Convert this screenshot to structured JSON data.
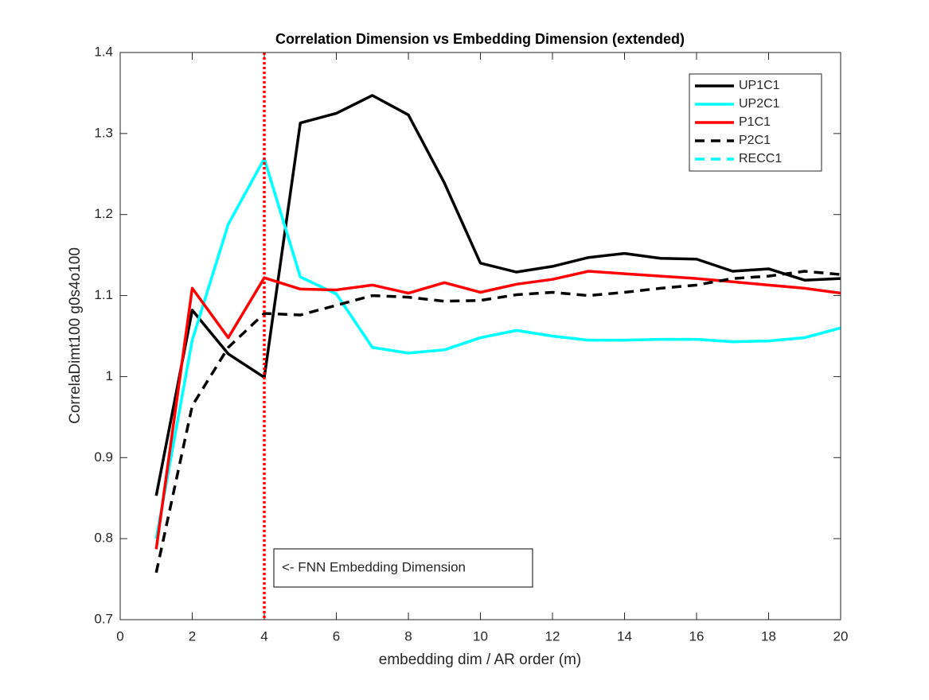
{
  "chart_data": {
    "type": "line",
    "title": "Correlation Dimension vs Embedding Dimension (extended)",
    "xlabel": "embedding dim / AR order (m)",
    "ylabel": "CorrelaDimt100 g0s4o100",
    "x": [
      1,
      2,
      3,
      4,
      5,
      6,
      7,
      8,
      9,
      10,
      11,
      12,
      13,
      14,
      15,
      16,
      17,
      18,
      19,
      20
    ],
    "series": [
      {
        "name": "RECC1",
        "color": "#00ffff",
        "dashed": true,
        "values": [
          0.8,
          1.045,
          1.188,
          1.269,
          1.123,
          1.102,
          1.036,
          1.029,
          1.033,
          1.048,
          1.057,
          1.05,
          1.045,
          1.045,
          1.046,
          1.046,
          1.043,
          1.044,
          1.048,
          1.06
        ]
      },
      {
        "name": "UP1C1",
        "color": "#000000",
        "dashed": false,
        "values": [
          0.853,
          1.082,
          1.028,
          0.999,
          1.313,
          1.325,
          1.347,
          1.323,
          1.239,
          1.14,
          1.129,
          1.136,
          1.147,
          1.152,
          1.146,
          1.145,
          1.13,
          1.133,
          1.119,
          1.121
        ]
      },
      {
        "name": "UP2C1",
        "color": "#00ffff",
        "dashed": false,
        "values": [
          0.8,
          1.045,
          1.188,
          1.269,
          1.123,
          1.102,
          1.036,
          1.029,
          1.033,
          1.048,
          1.057,
          1.05,
          1.045,
          1.045,
          1.046,
          1.046,
          1.043,
          1.044,
          1.048,
          1.06
        ]
      },
      {
        "name": "P1C1",
        "color": "#ff0000",
        "dashed": false,
        "values": [
          0.787,
          1.109,
          1.048,
          1.122,
          1.108,
          1.107,
          1.113,
          1.103,
          1.116,
          1.104,
          1.114,
          1.12,
          1.13,
          1.127,
          1.124,
          1.121,
          1.117,
          1.113,
          1.109,
          1.103
        ]
      },
      {
        "name": "P2C1",
        "color": "#000000",
        "dashed": true,
        "values": [
          0.758,
          0.964,
          1.036,
          1.078,
          1.076,
          1.088,
          1.1,
          1.098,
          1.093,
          1.094,
          1.101,
          1.104,
          1.1,
          1.104,
          1.109,
          1.113,
          1.121,
          1.124,
          1.13,
          1.126
        ]
      }
    ],
    "legend_order": [
      "UP1C1",
      "UP2C1",
      "P1C1",
      "P2C1",
      "RECC1"
    ],
    "vline": {
      "x": 4,
      "color": "#ff0000"
    },
    "annotation": "<- FNN Embedding Dimension",
    "xlim": [
      0,
      20
    ],
    "xticks": [
      0,
      2,
      4,
      6,
      8,
      10,
      12,
      14,
      16,
      18,
      20
    ],
    "ylim": [
      0.7,
      1.4
    ],
    "yticks": [
      0.7,
      0.8,
      0.9,
      1,
      1.1,
      1.2,
      1.3,
      1.4
    ],
    "legend": "northeast"
  }
}
